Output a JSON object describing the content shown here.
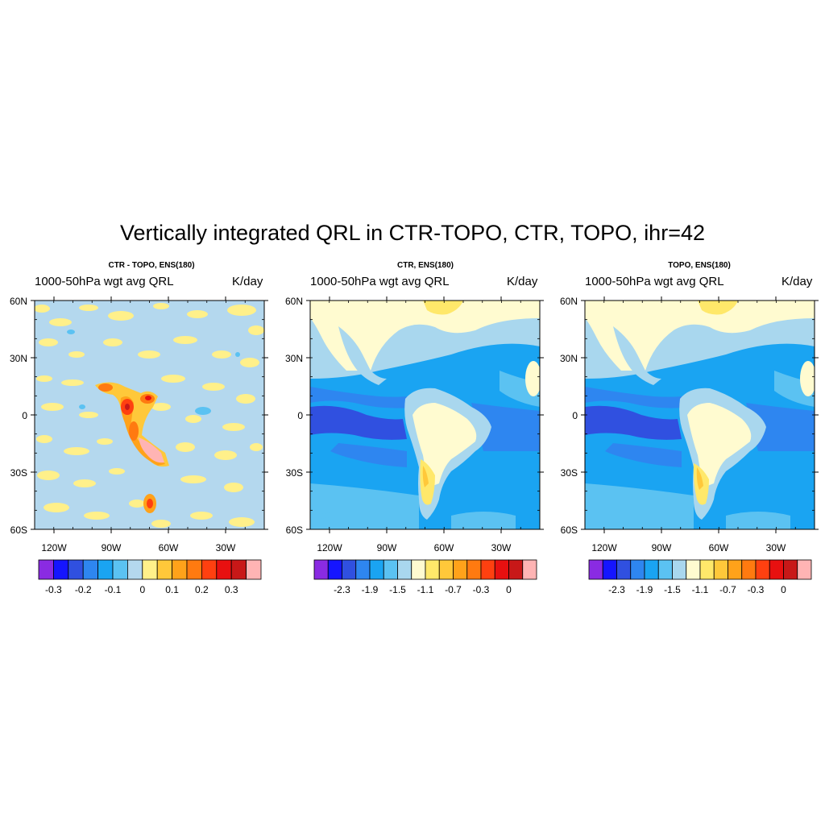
{
  "title": "Vertically integrated QRL in CTR-TOPO, CTR, TOPO, ihr=42",
  "axes": {
    "lat_labels": [
      "60N",
      "30N",
      "0",
      "30S",
      "60S"
    ],
    "lon_labels": [
      "120W",
      "90W",
      "60W",
      "30W"
    ]
  },
  "panels": [
    {
      "title": "CTR - TOPO, ENS(180)",
      "left_label": "1000-50hPa wgt avg QRL",
      "right_label": "K/day",
      "colorbar_labels": [
        "-0.3",
        "-0.2",
        "-0.1",
        "0",
        "0.1",
        "0.2",
        "0.3"
      ]
    },
    {
      "title": "CTR, ENS(180)",
      "left_label": "1000-50hPa wgt avg QRL",
      "right_label": "K/day",
      "colorbar_labels": [
        "-2.3",
        "-1.9",
        "-1.5",
        "-1.1",
        "-0.7",
        "-0.3",
        "0"
      ]
    },
    {
      "title": "TOPO, ENS(180)",
      "left_label": "1000-50hPa wgt avg QRL",
      "right_label": "K/day",
      "colorbar_labels": [
        "-2.3",
        "-1.9",
        "-1.5",
        "-1.1",
        "-0.7",
        "-0.3",
        "0"
      ]
    }
  ],
  "colormap": [
    "#8a2be2",
    "#1515ff",
    "#3050e0",
    "#2e86f0",
    "#1aa4f2",
    "#5bc2f2",
    "#a9d7ee",
    "#fffbd0",
    "#ffe86a",
    "#ffc83a",
    "#ffa21a",
    "#ff7a10",
    "#ff4010",
    "#e81010",
    "#c81818",
    "#ffb4b4"
  ],
  "diff_colormap": [
    "#8a2be2",
    "#1515ff",
    "#3050e0",
    "#2e86f0",
    "#1aa4f2",
    "#5bc2f2",
    "#b4d8ee",
    "#fff08a",
    "#ffc83a",
    "#ffa21a",
    "#ff7a10",
    "#ff4010",
    "#e81010",
    "#c81818",
    "#ffb4b4"
  ]
}
